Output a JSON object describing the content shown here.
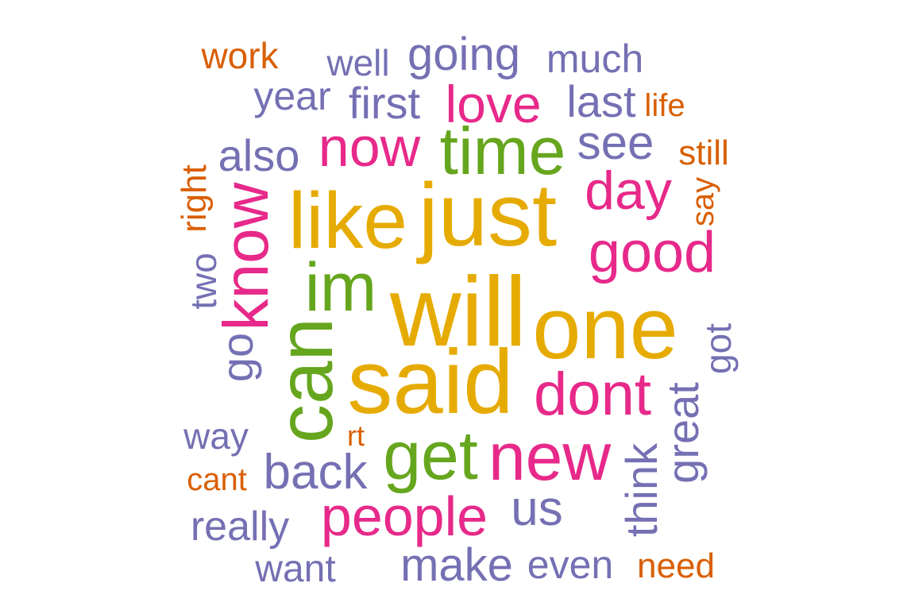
{
  "colors": {
    "gold": "#E6AB02",
    "green": "#66A61E",
    "pink": "#E7298A",
    "purple": "#7570B3",
    "orange": "#D95F02"
  },
  "words": [
    {
      "text": "work",
      "color": "orange"
    },
    {
      "text": "well",
      "color": "purple"
    },
    {
      "text": "going",
      "color": "purple"
    },
    {
      "text": "much",
      "color": "purple"
    },
    {
      "text": "year",
      "color": "purple"
    },
    {
      "text": "first",
      "color": "purple"
    },
    {
      "text": "love",
      "color": "pink"
    },
    {
      "text": "last",
      "color": "purple"
    },
    {
      "text": "life",
      "color": "orange"
    },
    {
      "text": "now",
      "color": "pink"
    },
    {
      "text": "time",
      "color": "green"
    },
    {
      "text": "see",
      "color": "purple"
    },
    {
      "text": "also",
      "color": "purple"
    },
    {
      "text": "still",
      "color": "orange"
    },
    {
      "text": "right",
      "color": "orange"
    },
    {
      "text": "know",
      "color": "pink"
    },
    {
      "text": "like",
      "color": "gold"
    },
    {
      "text": "just",
      "color": "gold"
    },
    {
      "text": "day",
      "color": "pink"
    },
    {
      "text": "say",
      "color": "orange"
    },
    {
      "text": "good",
      "color": "pink"
    },
    {
      "text": "two",
      "color": "purple"
    },
    {
      "text": "im",
      "color": "green"
    },
    {
      "text": "will",
      "color": "gold"
    },
    {
      "text": "one",
      "color": "gold"
    },
    {
      "text": "go",
      "color": "purple"
    },
    {
      "text": "can",
      "color": "green"
    },
    {
      "text": "got",
      "color": "purple"
    },
    {
      "text": "said",
      "color": "gold"
    },
    {
      "text": "dont",
      "color": "pink"
    },
    {
      "text": "great",
      "color": "purple"
    },
    {
      "text": "way",
      "color": "purple"
    },
    {
      "text": "rt",
      "color": "orange"
    },
    {
      "text": "get",
      "color": "green"
    },
    {
      "text": "new",
      "color": "pink"
    },
    {
      "text": "think",
      "color": "purple"
    },
    {
      "text": "back",
      "color": "purple"
    },
    {
      "text": "cant",
      "color": "orange"
    },
    {
      "text": "people",
      "color": "pink"
    },
    {
      "text": "us",
      "color": "purple"
    },
    {
      "text": "really",
      "color": "purple"
    },
    {
      "text": "want",
      "color": "purple"
    },
    {
      "text": "make",
      "color": "purple"
    },
    {
      "text": "even",
      "color": "purple"
    },
    {
      "text": "need",
      "color": "orange"
    }
  ]
}
